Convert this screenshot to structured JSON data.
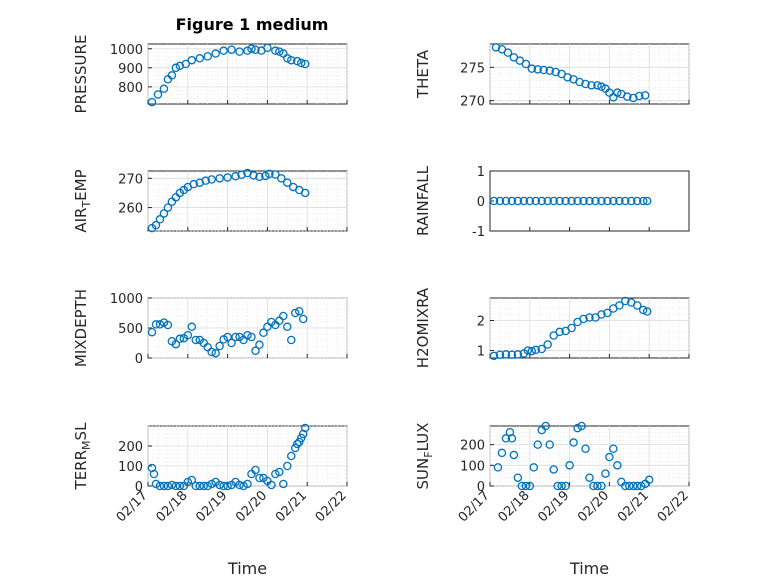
{
  "figure_title": "Figure 1 medium",
  "chart_data": [
    {
      "id": "pressure",
      "type": "scatter",
      "title": "Figure 1 medium",
      "ylabel": "PRESSURE",
      "xlabel": "",
      "show_xticklabels": false,
      "xlim": [
        0,
        5
      ],
      "ylim": [
        710,
        1025
      ],
      "yticks": [
        800,
        900,
        1000
      ],
      "ytick_labels": [
        "800",
        "900",
        "1000"
      ],
      "grid": true,
      "marker_color": "#0072BD",
      "x": [
        0.1,
        0.25,
        0.4,
        0.5,
        0.6,
        0.7,
        0.8,
        0.95,
        1.1,
        1.3,
        1.5,
        1.7,
        1.9,
        2.1,
        2.3,
        2.5,
        2.6,
        2.7,
        2.85,
        3.0,
        3.2,
        3.3,
        3.4,
        3.5,
        3.6,
        3.75,
        3.85,
        3.95
      ],
      "y": [
        720,
        760,
        790,
        840,
        860,
        900,
        910,
        920,
        940,
        950,
        960,
        975,
        990,
        995,
        985,
        990,
        1000,
        995,
        990,
        1005,
        990,
        985,
        975,
        950,
        940,
        935,
        925,
        920
      ]
    },
    {
      "id": "theta",
      "type": "scatter",
      "ylabel": "THETA",
      "xlabel": "",
      "show_xticklabels": false,
      "xlim": [
        0,
        5
      ],
      "ylim": [
        269.5,
        278.5
      ],
      "yticks": [
        270,
        275
      ],
      "ytick_labels": [
        "270",
        "275"
      ],
      "grid": true,
      "marker_color": "#0072BD",
      "x": [
        0.15,
        0.3,
        0.45,
        0.6,
        0.75,
        0.9,
        1.05,
        1.2,
        1.35,
        1.5,
        1.65,
        1.8,
        1.95,
        2.1,
        2.25,
        2.4,
        2.55,
        2.7,
        2.8,
        2.9,
        3.0,
        3.1,
        3.2,
        3.3,
        3.45,
        3.6,
        3.75,
        3.9
      ],
      "y": [
        278,
        277.7,
        277.2,
        276.5,
        276,
        275.5,
        274.8,
        274.7,
        274.6,
        274.5,
        274.3,
        274,
        273.5,
        273.2,
        272.8,
        272.5,
        272.3,
        272.3,
        272.1,
        271.8,
        271.2,
        270.5,
        271.2,
        271,
        270.6,
        270.4,
        270.7,
        270.8
      ]
    },
    {
      "id": "air-temp",
      "type": "scatter",
      "ylabel": "AIR",
      "ylabel_sub": "T",
      "ylabel_tail": "EMP",
      "xlabel": "",
      "show_xticklabels": false,
      "xlim": [
        0,
        5
      ],
      "ylim": [
        252,
        272.5
      ],
      "yticks": [
        260,
        270
      ],
      "ytick_labels": [
        "260",
        "270"
      ],
      "grid": true,
      "marker_color": "#0072BD",
      "x": [
        0.1,
        0.2,
        0.3,
        0.4,
        0.5,
        0.6,
        0.7,
        0.8,
        0.9,
        1.0,
        1.15,
        1.3,
        1.45,
        1.6,
        1.8,
        2.0,
        2.2,
        2.35,
        2.5,
        2.65,
        2.8,
        2.95,
        3.05,
        3.2,
        3.35,
        3.5,
        3.65,
        3.8,
        3.95
      ],
      "y": [
        253,
        254,
        256,
        258,
        260,
        262,
        263.5,
        265,
        266,
        267,
        268,
        268.5,
        269.2,
        269.6,
        270,
        270.3,
        270.7,
        271.2,
        271.8,
        271,
        270.5,
        270.8,
        271.5,
        271.3,
        270,
        268.5,
        267,
        266,
        265
      ]
    },
    {
      "id": "rainfall",
      "type": "scatter",
      "ylabel": "RAINFALL",
      "xlabel": "",
      "show_xticklabels": false,
      "xlim": [
        0,
        5
      ],
      "ylim": [
        -1,
        1
      ],
      "yticks": [
        -1,
        0,
        1
      ],
      "ytick_labels": [
        "-1",
        "0",
        "1"
      ],
      "grid": false,
      "marker_color": "#0072BD",
      "x": [
        0.1,
        0.25,
        0.4,
        0.55,
        0.7,
        0.85,
        1.0,
        1.15,
        1.3,
        1.45,
        1.6,
        1.75,
        1.9,
        2.05,
        2.2,
        2.35,
        2.5,
        2.65,
        2.8,
        2.95,
        3.1,
        3.25,
        3.4,
        3.55,
        3.7,
        3.85,
        3.95
      ],
      "y": [
        0,
        0,
        0,
        0,
        0,
        0,
        0,
        0,
        0,
        0,
        0,
        0,
        0,
        0,
        0,
        0,
        0,
        0,
        0,
        0,
        0,
        0,
        0,
        0,
        0,
        0,
        0
      ]
    },
    {
      "id": "mixdepth",
      "type": "scatter",
      "ylabel": "MIXDEPTH",
      "xlabel": "",
      "show_xticklabels": false,
      "xlim": [
        0,
        5
      ],
      "ylim": [
        0,
        1000
      ],
      "yticks": [
        0,
        500,
        1000
      ],
      "ytick_labels": [
        "0",
        "500",
        "1000"
      ],
      "grid": true,
      "marker_color": "#0072BD",
      "x": [
        0.1,
        0.2,
        0.3,
        0.4,
        0.5,
        0.6,
        0.7,
        0.8,
        0.9,
        1.0,
        1.1,
        1.2,
        1.3,
        1.4,
        1.5,
        1.6,
        1.7,
        1.8,
        1.9,
        2.0,
        2.1,
        2.2,
        2.3,
        2.4,
        2.5,
        2.6,
        2.7,
        2.8,
        2.9,
        3.0,
        3.1,
        3.2,
        3.3,
        3.4,
        3.5,
        3.6,
        3.7,
        3.8,
        3.9
      ],
      "y": [
        430,
        560,
        560,
        590,
        550,
        280,
        230,
        320,
        330,
        380,
        520,
        300,
        300,
        250,
        180,
        100,
        80,
        200,
        310,
        350,
        250,
        350,
        350,
        300,
        380,
        350,
        120,
        220,
        420,
        520,
        600,
        550,
        620,
        700,
        520,
        300,
        750,
        780,
        650
      ]
    },
    {
      "id": "h2omixra",
      "type": "scatter",
      "ylabel": "H2OMIXRA",
      "xlabel": "",
      "show_xticklabels": false,
      "xlim": [
        0,
        5
      ],
      "ylim": [
        0.75,
        2.75
      ],
      "yticks": [
        1,
        2
      ],
      "ytick_labels": [
        "1",
        "2"
      ],
      "grid": true,
      "marker_color": "#0072BD",
      "x": [
        0.1,
        0.25,
        0.4,
        0.55,
        0.7,
        0.85,
        0.95,
        1.05,
        1.15,
        1.3,
        1.45,
        1.6,
        1.75,
        1.9,
        2.05,
        2.2,
        2.35,
        2.5,
        2.65,
        2.8,
        2.95,
        3.1,
        3.25,
        3.4,
        3.55,
        3.7,
        3.85,
        3.95
      ],
      "y": [
        0.82,
        0.86,
        0.87,
        0.86,
        0.87,
        0.9,
        1.0,
        0.98,
        1.02,
        1.05,
        1.2,
        1.5,
        1.62,
        1.65,
        1.75,
        1.95,
        2.05,
        2.1,
        2.1,
        2.2,
        2.25,
        2.4,
        2.5,
        2.65,
        2.6,
        2.5,
        2.35,
        2.3
      ]
    },
    {
      "id": "terr-msl",
      "type": "scatter",
      "ylabel": "TERR",
      "ylabel_sub": "M",
      "ylabel_tail": "SL",
      "xlabel": "Time",
      "show_xticklabels": true,
      "xlim": [
        0,
        5
      ],
      "ylim": [
        0,
        300
      ],
      "yticks": [
        0,
        100,
        200
      ],
      "ytick_labels": [
        "0",
        "100",
        "200"
      ],
      "xticks": [
        0,
        1,
        2,
        3,
        4,
        5
      ],
      "xtick_labels": [
        "02/17",
        "02/18",
        "02/19",
        "02/20",
        "02/21",
        "02/22"
      ],
      "grid": true,
      "marker_color": "#0072BD",
      "x": [
        0.1,
        0.15,
        0.2,
        0.3,
        0.4,
        0.5,
        0.6,
        0.7,
        0.8,
        0.9,
        1.0,
        1.1,
        1.2,
        1.3,
        1.4,
        1.5,
        1.6,
        1.7,
        1.8,
        1.9,
        2.0,
        2.1,
        2.2,
        2.3,
        2.4,
        2.5,
        2.6,
        2.7,
        2.8,
        2.9,
        3.0,
        3.1,
        3.2,
        3.3,
        3.4,
        3.5,
        3.6,
        3.7,
        3.75,
        3.8,
        3.85,
        3.9,
        3.95
      ],
      "y": [
        90,
        60,
        10,
        0,
        0,
        0,
        5,
        0,
        0,
        0,
        20,
        30,
        0,
        0,
        0,
        0,
        10,
        20,
        5,
        0,
        0,
        5,
        20,
        5,
        0,
        10,
        60,
        80,
        40,
        40,
        25,
        5,
        60,
        70,
        10,
        100,
        150,
        190,
        210,
        220,
        240,
        260,
        290
      ]
    },
    {
      "id": "sun-flux",
      "type": "scatter",
      "ylabel": "SUN",
      "ylabel_sub": "F",
      "ylabel_tail": "LUX",
      "xlabel": "Time",
      "show_xticklabels": true,
      "xlim": [
        0,
        5
      ],
      "ylim": [
        0,
        290
      ],
      "yticks": [
        0,
        100,
        200
      ],
      "ytick_labels": [
        "0",
        "100",
        "200"
      ],
      "xticks": [
        0,
        1,
        2,
        3,
        4,
        5
      ],
      "xtick_labels": [
        "02/17",
        "02/18",
        "02/19",
        "02/20",
        "02/21",
        "02/22"
      ],
      "grid": true,
      "marker_color": "#0072BD",
      "x": [
        0.2,
        0.3,
        0.4,
        0.5,
        0.55,
        0.6,
        0.7,
        0.8,
        0.9,
        1.0,
        1.1,
        1.2,
        1.3,
        1.4,
        1.5,
        1.6,
        1.7,
        1.8,
        1.9,
        2.0,
        2.1,
        2.2,
        2.3,
        2.4,
        2.5,
        2.6,
        2.7,
        2.8,
        2.9,
        3.0,
        3.1,
        3.2,
        3.3,
        3.4,
        3.5,
        3.6,
        3.7,
        3.8,
        3.9,
        4.0
      ],
      "y": [
        90,
        160,
        230,
        260,
        230,
        150,
        40,
        0,
        0,
        0,
        90,
        200,
        270,
        290,
        200,
        80,
        0,
        0,
        0,
        100,
        210,
        280,
        290,
        180,
        40,
        0,
        0,
        0,
        60,
        140,
        180,
        100,
        20,
        0,
        0,
        0,
        0,
        0,
        10,
        30
      ]
    }
  ]
}
